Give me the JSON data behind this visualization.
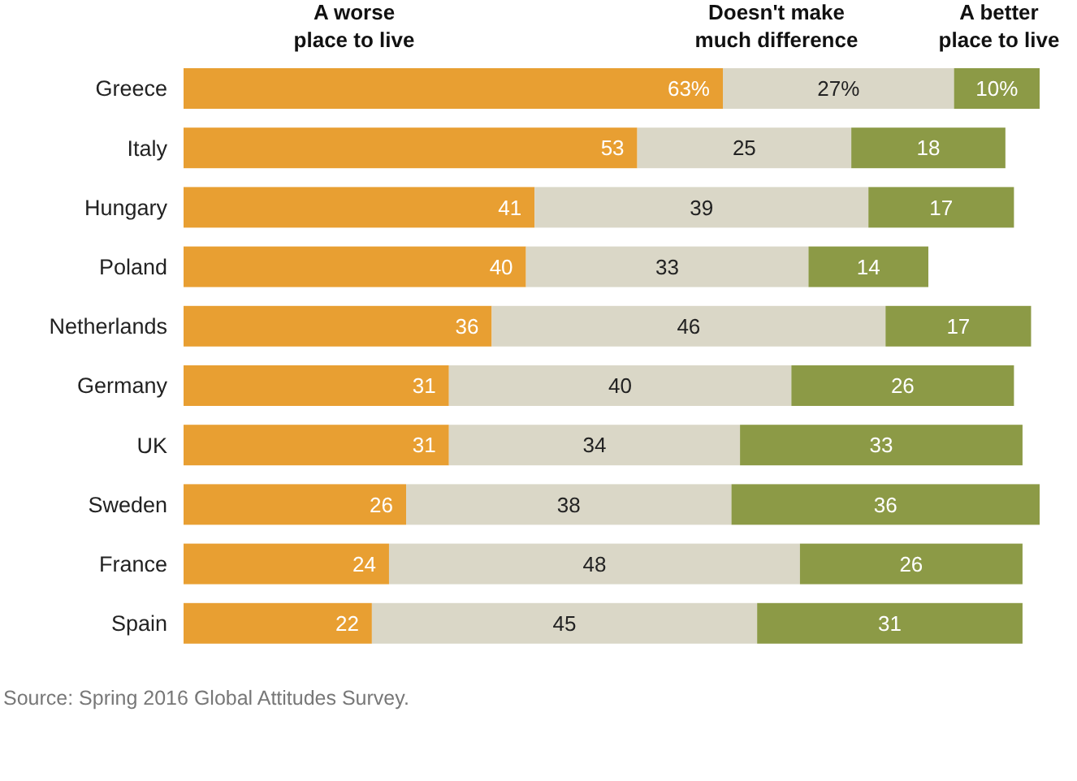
{
  "chart_data": {
    "type": "bar",
    "orientation": "horizontal",
    "stacked": true,
    "legend": "top",
    "categories": [
      "Greece",
      "Italy",
      "Hungary",
      "Poland",
      "Netherlands",
      "Germany",
      "UK",
      "Sweden",
      "France",
      "Spain"
    ],
    "series": [
      {
        "name": "A worse place to live",
        "color": "#e89f32",
        "values": [
          63,
          53,
          41,
          40,
          36,
          31,
          31,
          26,
          24,
          22
        ],
        "value_labels": [
          "63%",
          "53",
          "41",
          "40",
          "36",
          "31",
          "31",
          "26",
          "24",
          "22"
        ]
      },
      {
        "name": "Doesn't make much difference",
        "color": "#dad7c7",
        "values": [
          27,
          25,
          39,
          33,
          46,
          40,
          34,
          38,
          48,
          45
        ],
        "value_labels": [
          "27%",
          "25",
          "39",
          "33",
          "46",
          "40",
          "34",
          "38",
          "48",
          "45"
        ]
      },
      {
        "name": "A better place to live",
        "color": "#8c9a46",
        "values": [
          10,
          18,
          17,
          14,
          17,
          26,
          33,
          36,
          26,
          31
        ],
        "value_labels": [
          "10%",
          "18",
          "17",
          "14",
          "17",
          "26",
          "33",
          "36",
          "26",
          "31"
        ]
      }
    ],
    "annotations": [
      "Source: Spring 2016 Global Attitudes Survey."
    ]
  }
}
